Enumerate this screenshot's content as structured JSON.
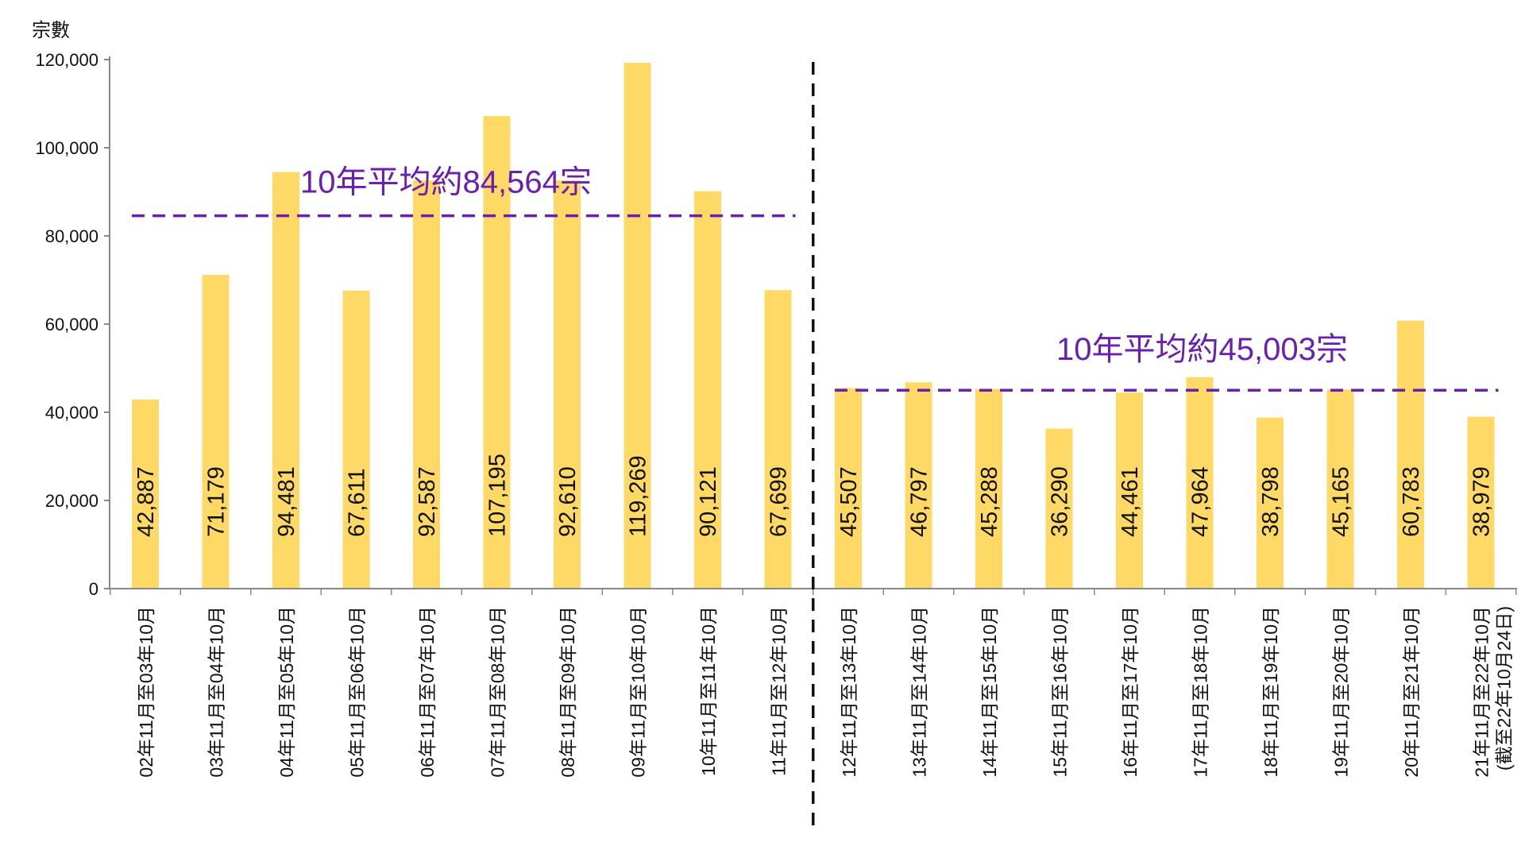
{
  "chart_data": {
    "type": "bar",
    "ylabel": "宗數",
    "ylim": [
      0,
      120000
    ],
    "yticks": [
      0,
      20000,
      40000,
      60000,
      80000,
      100000,
      120000
    ],
    "ytick_labels": [
      "0",
      "20,000",
      "40,000",
      "60,000",
      "80,000",
      "100,000",
      "120,000"
    ],
    "grid": false,
    "colors": {
      "bar": "#FFD966",
      "average_line": "#6A1FB0",
      "divider": "#111111",
      "axis": "#888888"
    },
    "categories": [
      "02年11月至03年10月",
      "03年11月至04年10月",
      "04年11月至05年10月",
      "05年11月至06年10月",
      "06年11月至07年10月",
      "07年11月至08年10月",
      "08年11月至09年10月",
      "09年11月至10年10月",
      "10年11月至11年10月",
      "11年11月至12年10月",
      "12年11月至13年10月",
      "13年11月至14年10月",
      "14年11月至15年10月",
      "15年11月至16年10月",
      "16年11月至17年10月",
      "17年11月至18年10月",
      "18年11月至19年10月",
      "19年11月至20年10月",
      "20年11月至21年10月",
      "21年11月至22年10月"
    ],
    "category_note_last": "(截至22年10月24日)",
    "values": [
      42887,
      71179,
      94481,
      67611,
      92587,
      107195,
      92610,
      119269,
      90121,
      67699,
      45507,
      46797,
      45288,
      36290,
      44461,
      47964,
      38798,
      45165,
      60783,
      38979
    ],
    "value_labels": [
      "42,887",
      "71,179",
      "94,481",
      "67,611",
      "92,587",
      "107,195",
      "92,610",
      "119,269",
      "90,121",
      "67,699",
      "45,507",
      "46,797",
      "45,288",
      "36,290",
      "44,461",
      "47,964",
      "38,798",
      "45,165",
      "60,783",
      "38,979"
    ],
    "annotations": [
      {
        "text": "10年平均約84,564宗",
        "value": 84564,
        "from_index": 0,
        "to_index": 9
      },
      {
        "text": "10年平均約45,003宗",
        "value": 45003,
        "from_index": 10,
        "to_index": 19
      }
    ],
    "divider_between_index": [
      9,
      10
    ]
  }
}
